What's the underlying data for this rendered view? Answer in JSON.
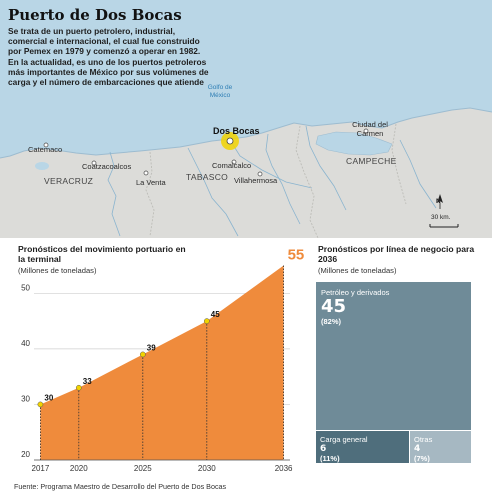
{
  "title": "Puerto de Dos Bocas",
  "intro_paragraphs": [
    "Se trata de un puerto petrolero, industrial, comercial e internacional, el cual fue construido por Pemex en 1979 y comenzó a operar en 1982.",
    "En la actualidad, es uno de los puertos petroleros más importantes de México por sus volúmenes de carga y el número de embarcaciones que atiende"
  ],
  "map": {
    "water_label": "Golfo de México",
    "highlight_place": "Dos Bocas",
    "places": [
      "Catemaco",
      "Coatzacoalcos",
      "La Venta",
      "Comalcalco",
      "Villahermosa",
      "Ciudad del Carmen"
    ],
    "states": [
      "VERACRUZ",
      "TABASCO",
      "CAMPECHE"
    ],
    "north_label": "N",
    "scale_label": "30 km.",
    "colors": {
      "sea": "#b9d6e6",
      "land": "#dcdcd9",
      "river": "#8ab4cf",
      "highlight": "#f2d300"
    }
  },
  "line_chart_header": {
    "title": "Pronósticos del movimiento portuario en la terminal",
    "subtitle": "(Millones de toneladas)"
  },
  "tree_chart_header": {
    "title": "Pronósticos por línea de negocio para 2036",
    "subtitle": "(Millones de toneladas)"
  },
  "chart_data": [
    {
      "type": "area",
      "title": "Pronósticos del movimiento portuario en la terminal",
      "ylabel": "(Millones de toneladas)",
      "x": [
        2017,
        2020,
        2025,
        2030,
        2036
      ],
      "x_tick_labels": [
        "2017",
        "2020",
        "2025",
        "2030",
        "2036"
      ],
      "y": [
        30,
        33,
        39,
        45,
        55
      ],
      "point_labels": [
        "30",
        "33",
        "39",
        "45",
        "55"
      ],
      "y_ticks": [
        20,
        30,
        40,
        50
      ],
      "ylim": [
        20,
        56
      ],
      "xlim": [
        2016.5,
        2036.5
      ],
      "grid": true,
      "colors": {
        "fill": "#ef8b3c",
        "marker": "#f2d300",
        "highlight_label": "#ef8b3c"
      }
    },
    {
      "type": "treemap",
      "title": "Pronósticos por línea de negocio para 2036",
      "ylabel": "(Millones de toneladas)",
      "items": [
        {
          "label": "Petróleo y derivados",
          "value": 45,
          "value_label": "45",
          "pct_label": "(82%)",
          "color": "#6f8b98"
        },
        {
          "label": "Carga general",
          "value": 6,
          "value_label": "6",
          "pct_label": "(11%)",
          "color": "#4f6e7c"
        },
        {
          "label": "Otras",
          "value": 4,
          "value_label": "4",
          "pct_label": "(7%)",
          "color": "#a6b8c2"
        }
      ]
    }
  ]
}
